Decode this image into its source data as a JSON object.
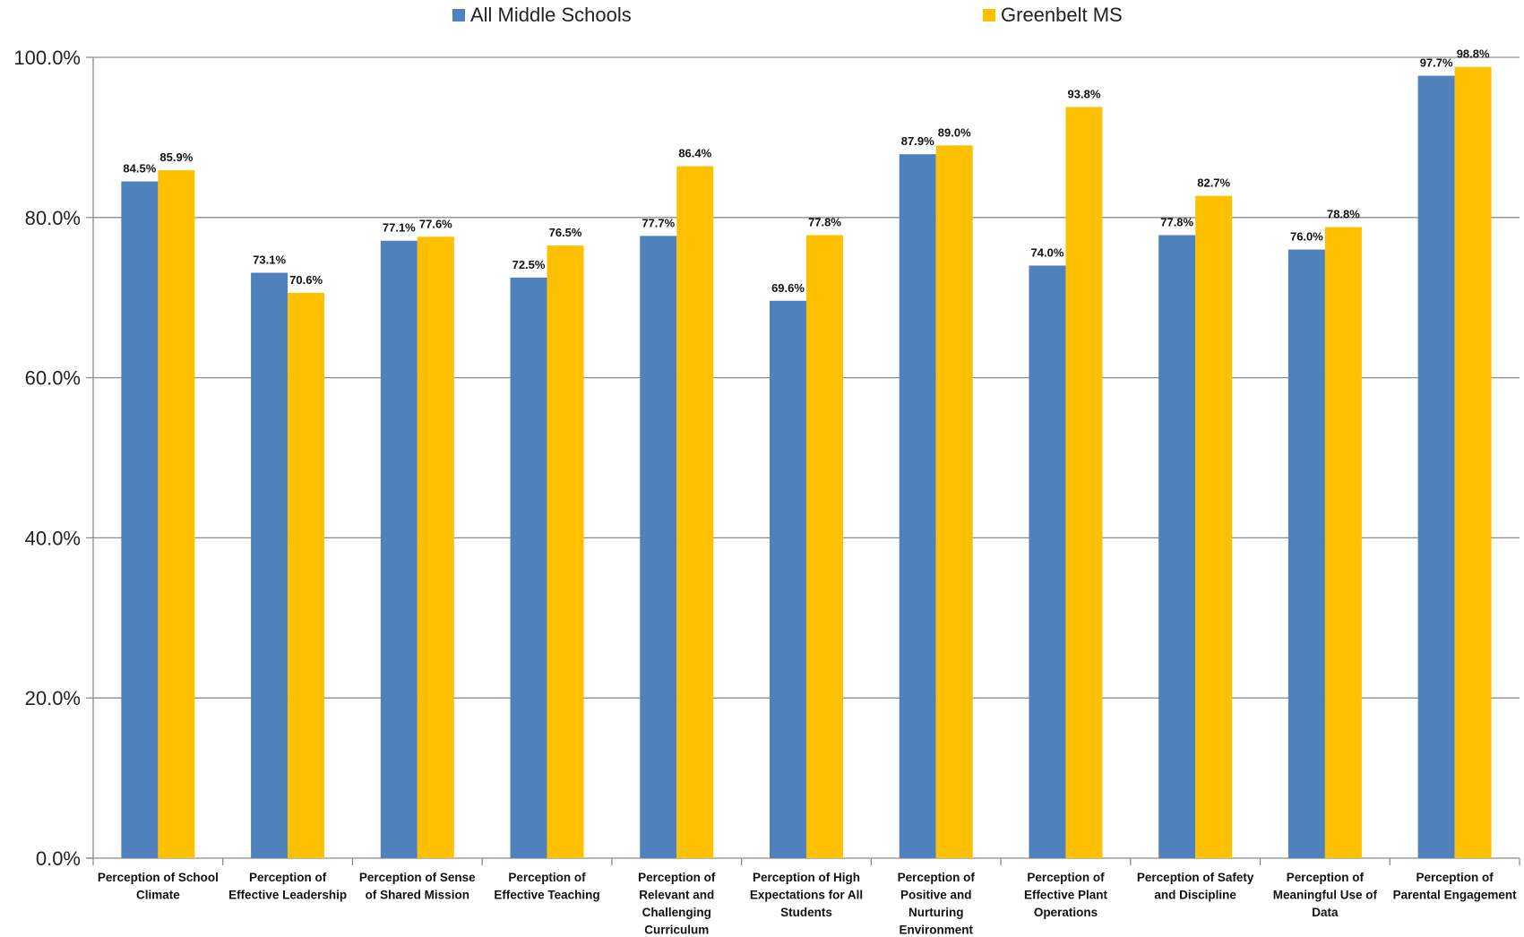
{
  "chart_data": {
    "type": "bar",
    "title": "",
    "xlabel": "",
    "ylabel": "",
    "ylim": [
      0,
      100
    ],
    "yticks": [
      0,
      20,
      40,
      60,
      80,
      100
    ],
    "ytick_labels": [
      "0.0%",
      "20.0%",
      "40.0%",
      "60.0%",
      "80.0%",
      "100.0%"
    ],
    "grid": true,
    "legend_position": "top",
    "categories": [
      [
        "Perception of School",
        "Climate"
      ],
      [
        "Perception of",
        "Effective Leadership"
      ],
      [
        "Perception of Sense",
        "of Shared Mission"
      ],
      [
        "Perception of",
        "Effective Teaching"
      ],
      [
        "Perception of",
        "Relevant and",
        "Challenging",
        "Curriculum"
      ],
      [
        "Perception of High",
        "Expectations for All",
        "Students"
      ],
      [
        "Perception of",
        "Positive and",
        "Nurturing",
        "Environment"
      ],
      [
        "Perception of",
        "Effective Plant",
        "Operations"
      ],
      [
        "Perception of Safety",
        "and Discipline"
      ],
      [
        "Perception of",
        "Meaningful Use of",
        "Data"
      ],
      [
        "Perception of",
        "Parental Engagement"
      ]
    ],
    "series": [
      {
        "name": "All Middle Schools",
        "color": "#4F81BD",
        "values": [
          84.5,
          73.1,
          77.1,
          72.5,
          77.7,
          69.6,
          87.9,
          74.0,
          77.8,
          76.0,
          97.7
        ],
        "labels": [
          "84.5%",
          "73.1%",
          "77.1%",
          "72.5%",
          "77.7%",
          "69.6%",
          "87.9%",
          "74.0%",
          "77.8%",
          "76.0%",
          "97.7%"
        ]
      },
      {
        "name": "Greenbelt MS",
        "color": "#FFC000",
        "values": [
          85.9,
          70.6,
          77.6,
          76.5,
          86.4,
          77.8,
          89.0,
          93.8,
          82.7,
          78.8,
          98.8
        ],
        "labels": [
          "85.9%",
          "70.6%",
          "77.6%",
          "76.5%",
          "86.4%",
          "77.8%",
          "89.0%",
          "93.8%",
          "82.7%",
          "78.8%",
          "98.8%"
        ]
      }
    ]
  }
}
